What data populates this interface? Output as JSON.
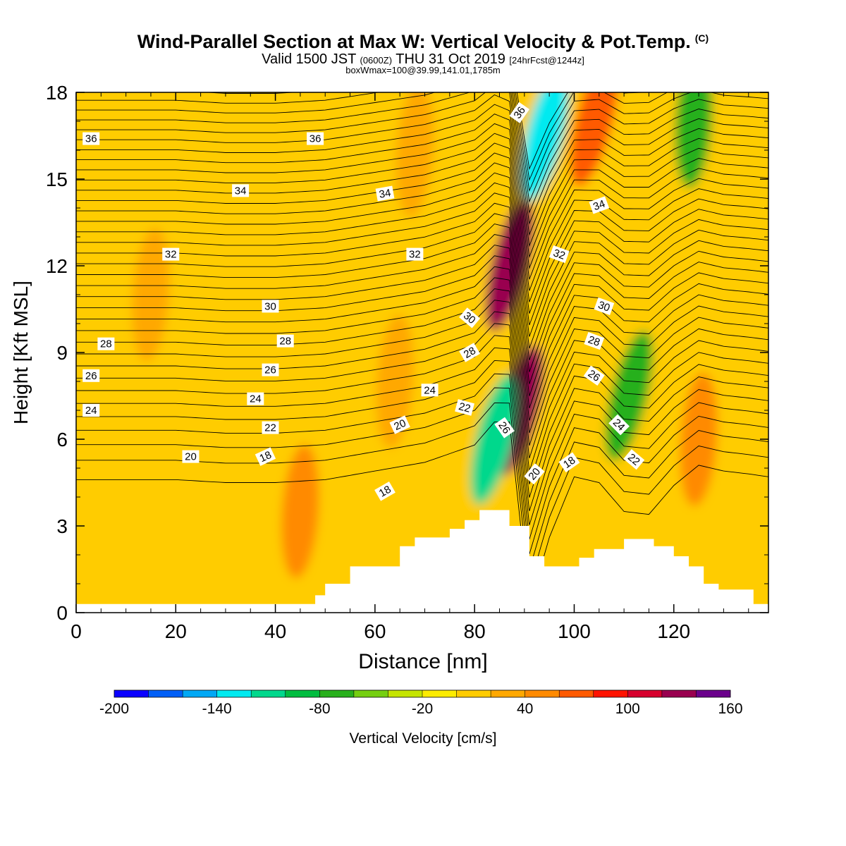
{
  "header": {
    "title": "Wind-Parallel Section at Max W: Vertical Velocity & Pot.Temp.",
    "copyright": "(C)",
    "valid_prefix": "Valid 1500 JST",
    "valid_utc": "(0600Z)",
    "valid_date": "THU 31 Oct 2019",
    "forecast": "[24hrFcst@1244z]",
    "box_info": "boxWmax=100@39.99,141.01,1785m"
  },
  "chart_data": {
    "type": "contour",
    "xlabel": "Distance [nm]",
    "ylabel": "Height [Kft MSL]",
    "xlim": [
      0,
      139
    ],
    "ylim": [
      0,
      18
    ],
    "x_ticks": [
      "0",
      "20",
      "40",
      "60",
      "80",
      "100",
      "120"
    ],
    "y_ticks": [
      "0",
      "3",
      "6",
      "9",
      "12",
      "15",
      "18"
    ],
    "colorbar": {
      "label": "Vertical Velocity [cm/s]",
      "min": -200,
      "max": 160,
      "step": 20,
      "tick_labels": [
        "-200",
        "-140",
        "-80",
        "-20",
        "40",
        "100",
        "160"
      ],
      "colors": [
        "#0a00ff",
        "#005ff7",
        "#00a8f5",
        "#00eaf0",
        "#00d88c",
        "#00bd40",
        "#28b01c",
        "#75cf10",
        "#c5e500",
        "#fcec00",
        "#ffcc00",
        "#ffa800",
        "#ff8a00",
        "#ff5a00",
        "#ff1300",
        "#d7002d",
        "#99004f",
        "#6a008b"
      ]
    },
    "terrain": [
      [
        0,
        0.3
      ],
      [
        48,
        0.3
      ],
      [
        48,
        0.6
      ],
      [
        50,
        0.6
      ],
      [
        50,
        1.0
      ],
      [
        55,
        1.0
      ],
      [
        55,
        1.6
      ],
      [
        65,
        1.6
      ],
      [
        65,
        2.3
      ],
      [
        68,
        2.3
      ],
      [
        68,
        2.6
      ],
      [
        75,
        2.6
      ],
      [
        75,
        2.9
      ],
      [
        78,
        2.9
      ],
      [
        78,
        3.2
      ],
      [
        81,
        3.2
      ],
      [
        81,
        3.55
      ],
      [
        87,
        3.55
      ],
      [
        87,
        3.0
      ],
      [
        91,
        3.0
      ],
      [
        91,
        1.95
      ],
      [
        94,
        1.95
      ],
      [
        94,
        1.6
      ],
      [
        101,
        1.6
      ],
      [
        101,
        1.9
      ],
      [
        104,
        1.9
      ],
      [
        104,
        2.2
      ],
      [
        110,
        2.2
      ],
      [
        110,
        2.55
      ],
      [
        116,
        2.55
      ],
      [
        116,
        2.3
      ],
      [
        120,
        2.3
      ],
      [
        120,
        1.95
      ],
      [
        123,
        1.95
      ],
      [
        123,
        1.6
      ],
      [
        126,
        1.6
      ],
      [
        126,
        1.0
      ],
      [
        129,
        1.0
      ],
      [
        129,
        0.8
      ],
      [
        136,
        0.8
      ],
      [
        136,
        0.3
      ],
      [
        139,
        0.3
      ]
    ],
    "w_anomalies": [
      {
        "x": 87,
        "y": 12,
        "w": 120
      },
      {
        "x": 89,
        "y": 7,
        "w": 120
      },
      {
        "x": 94,
        "y": 16.5,
        "w": -140
      },
      {
        "x": 84,
        "y": 6,
        "w": -120
      },
      {
        "x": 111,
        "y": 7.5,
        "w": -80
      },
      {
        "x": 124,
        "y": 17,
        "w": -80
      },
      {
        "x": 104,
        "y": 17,
        "w": 60
      },
      {
        "x": 125,
        "y": 6,
        "w": 40
      },
      {
        "x": 64,
        "y": 8,
        "w": 25
      },
      {
        "x": 45,
        "y": 3.5,
        "w": 40
      },
      {
        "x": 15,
        "y": 11,
        "w": 20
      },
      {
        "x": 68,
        "y": 16,
        "w": 20
      }
    ],
    "isentrope_profile": {
      "x": [
        0,
        10,
        20,
        30,
        40,
        50,
        60,
        70,
        80,
        84,
        87,
        91,
        95,
        100,
        105,
        110,
        115,
        120,
        125,
        130,
        135,
        139
      ],
      "base_height": [
        4.6,
        4.6,
        4.6,
        4.5,
        4.5,
        4.6,
        4.8,
        5.0,
        5.3,
        5.4,
        4.8,
        3.2,
        3.8,
        4.4,
        4.8,
        5.0,
        5.2,
        5.0,
        4.8,
        4.6,
        4.6,
        4.6
      ],
      "perturbation": [
        0,
        0,
        0,
        0,
        0,
        0,
        0.1,
        0.2,
        0.5,
        1.2,
        1.8,
        -3.0,
        -1.2,
        0.3,
        -0.3,
        -1.5,
        -1.8,
        -0.6,
        0.3,
        0.3,
        0.2,
        0.1
      ]
    },
    "contour_labels": [
      {
        "text": "36",
        "x": 3,
        "y": 16.4,
        "rot": 0
      },
      {
        "text": "36",
        "x": 48,
        "y": 16.4,
        "rot": 0
      },
      {
        "text": "36",
        "x": 89,
        "y": 17.3,
        "rot": -55
      },
      {
        "text": "34",
        "x": 33,
        "y": 14.6,
        "rot": 0
      },
      {
        "text": "34",
        "x": 62,
        "y": 14.5,
        "rot": -10
      },
      {
        "text": "34",
        "x": 105,
        "y": 14.1,
        "rot": -20
      },
      {
        "text": "32",
        "x": 19,
        "y": 12.4,
        "rot": 0
      },
      {
        "text": "32",
        "x": 68,
        "y": 12.4,
        "rot": 0
      },
      {
        "text": "32",
        "x": 97,
        "y": 12.4,
        "rot": 20
      },
      {
        "text": "30",
        "x": 39,
        "y": 10.6,
        "rot": 0
      },
      {
        "text": "30",
        "x": 79,
        "y": 10.2,
        "rot": 40
      },
      {
        "text": "30",
        "x": 106,
        "y": 10.6,
        "rot": 20
      },
      {
        "text": "28",
        "x": 6,
        "y": 9.3,
        "rot": 0
      },
      {
        "text": "28",
        "x": 42,
        "y": 9.4,
        "rot": 0
      },
      {
        "text": "28",
        "x": 79,
        "y": 9.0,
        "rot": -30
      },
      {
        "text": "28",
        "x": 104,
        "y": 9.4,
        "rot": 20
      },
      {
        "text": "26",
        "x": 3,
        "y": 8.2,
        "rot": 0
      },
      {
        "text": "26",
        "x": 39,
        "y": 8.4,
        "rot": 0
      },
      {
        "text": "26",
        "x": 86,
        "y": 6.4,
        "rot": 55
      },
      {
        "text": "26",
        "x": 104,
        "y": 8.2,
        "rot": 35
      },
      {
        "text": "24",
        "x": 3,
        "y": 7.0,
        "rot": 0
      },
      {
        "text": "24",
        "x": 36,
        "y": 7.4,
        "rot": 0
      },
      {
        "text": "24",
        "x": 71,
        "y": 7.7,
        "rot": 0
      },
      {
        "text": "24",
        "x": 109,
        "y": 6.5,
        "rot": 45
      },
      {
        "text": "22",
        "x": 39,
        "y": 6.4,
        "rot": 0
      },
      {
        "text": "22",
        "x": 78,
        "y": 7.1,
        "rot": 15
      },
      {
        "text": "22",
        "x": 112,
        "y": 5.3,
        "rot": 40
      },
      {
        "text": "20",
        "x": 23,
        "y": 5.4,
        "rot": 0
      },
      {
        "text": "20",
        "x": 65,
        "y": 6.5,
        "rot": -25
      },
      {
        "text": "20",
        "x": 92,
        "y": 4.8,
        "rot": -50
      },
      {
        "text": "18",
        "x": 38,
        "y": 5.4,
        "rot": -25
      },
      {
        "text": "18",
        "x": 62,
        "y": 4.2,
        "rot": -30
      },
      {
        "text": "18",
        "x": 99,
        "y": 5.2,
        "rot": -35
      }
    ]
  }
}
